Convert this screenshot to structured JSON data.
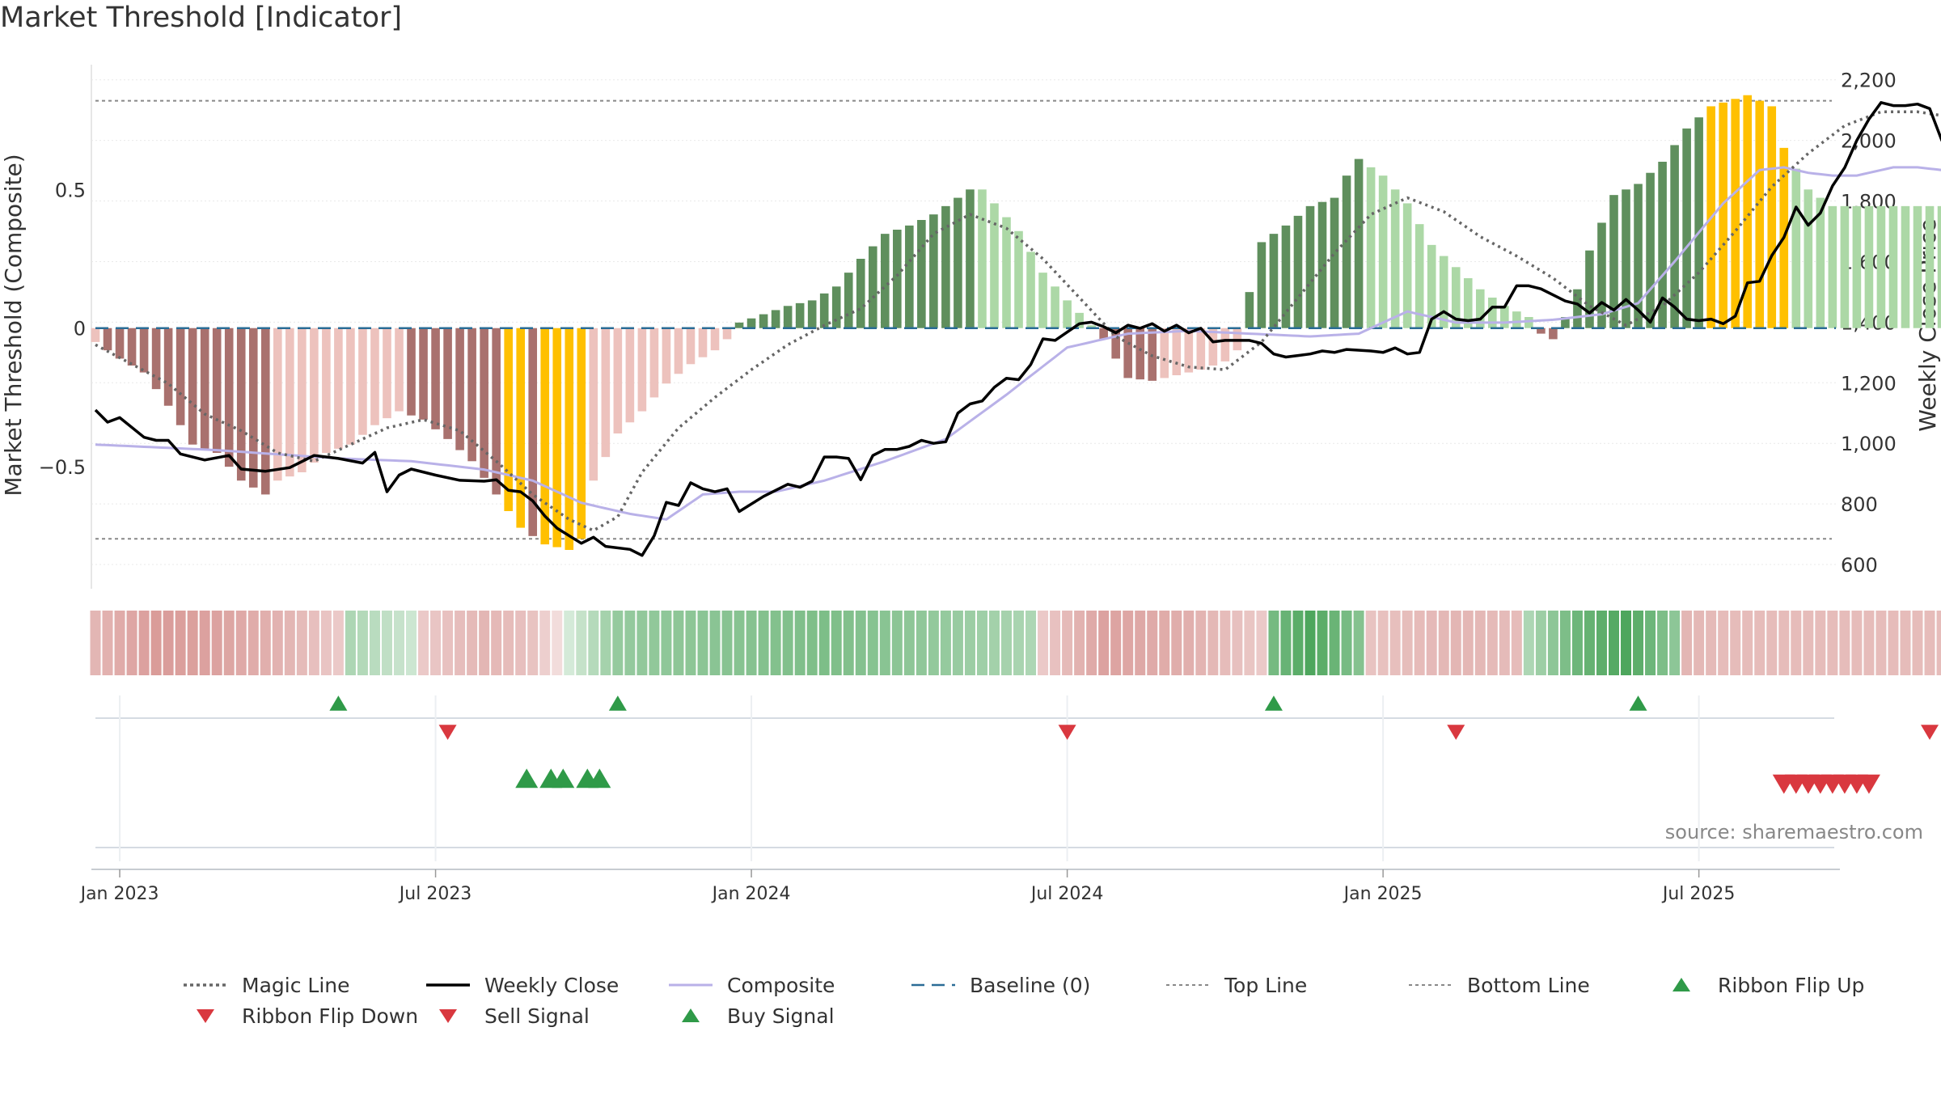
{
  "title": "Market Threshold [Indicator]",
  "source": "source: sharemaestro.com",
  "colors": {
    "bear_dark": "#a9716e",
    "bear_light": "#edc2bd",
    "bull_dark": "#5f8f5d",
    "bull_light": "#acd8a6",
    "extreme": "#ffc000",
    "close": "#000000",
    "composite": "#b9b1e8",
    "magic": "#666666",
    "baseline": "#2a6c96",
    "threshold": "#888888",
    "buy": "#2f9a48",
    "sell": "#d9383f"
  },
  "chart_data": {
    "type": "bar",
    "title": "Market Threshold [Indicator]",
    "ylabel": "Market Threshold (Composite)",
    "y2label": "Weekly Close Price",
    "ylim": [
      -0.94,
      0.95
    ],
    "y2lim": [
      520,
      2250
    ],
    "yticks": [
      {
        "v": 0.5,
        "label": "0.5"
      },
      {
        "v": 0,
        "label": "0"
      },
      {
        "v": -0.5,
        "label": "−0.5"
      }
    ],
    "y2ticks": [
      {
        "v": 2200,
        "label": "2,200"
      },
      {
        "v": 2000,
        "label": "2,000"
      },
      {
        "v": 1800,
        "label": "1,800"
      },
      {
        "v": 1600,
        "label": "1,600"
      },
      {
        "v": 1400,
        "label": "1,400"
      },
      {
        "v": 1200,
        "label": "1,200"
      },
      {
        "v": 1000,
        "label": "1,000"
      },
      {
        "v": 800,
        "label": "800"
      },
      {
        "v": 600,
        "label": "600"
      }
    ],
    "xticks": [
      {
        "w": 2,
        "label": "Jan 2023"
      },
      {
        "w": 28,
        "label": "Jul 2023"
      },
      {
        "w": 54,
        "label": "Jan 2024"
      },
      {
        "w": 80,
        "label": "Jul 2024"
      },
      {
        "w": 106,
        "label": "Jan 2025"
      },
      {
        "w": 132,
        "label": "Jul 2025"
      }
    ],
    "top_line": 0.82,
    "bottom_line": -0.76,
    "baseline": 0,
    "bar_anchors": [
      [
        0,
        -0.05
      ],
      [
        2,
        -0.11
      ],
      [
        4,
        -0.16
      ],
      [
        6,
        -0.28
      ],
      [
        8,
        -0.42
      ],
      [
        10,
        -0.45
      ],
      [
        12,
        -0.55
      ],
      [
        14,
        -0.6
      ],
      [
        15,
        -0.55
      ],
      [
        17,
        -0.52
      ],
      [
        19,
        -0.45
      ],
      [
        21,
        -0.42
      ],
      [
        23,
        -0.35
      ],
      [
        25,
        -0.3
      ],
      [
        27,
        -0.33
      ],
      [
        29,
        -0.4
      ],
      [
        31,
        -0.48
      ],
      [
        33,
        -0.6
      ],
      [
        35,
        -0.72
      ],
      [
        37,
        -0.78
      ],
      [
        39,
        -0.8
      ],
      [
        40,
        -0.76
      ],
      [
        41,
        -0.55
      ],
      [
        43,
        -0.38
      ],
      [
        45,
        -0.3
      ],
      [
        47,
        -0.2
      ],
      [
        49,
        -0.13
      ],
      [
        51,
        -0.08
      ],
      [
        52,
        -0.04
      ],
      [
        53,
        0.02
      ],
      [
        55,
        0.05
      ],
      [
        57,
        0.08
      ],
      [
        59,
        0.1
      ],
      [
        61,
        0.15
      ],
      [
        63,
        0.25
      ],
      [
        65,
        0.34
      ],
      [
        67,
        0.37
      ],
      [
        69,
        0.41
      ],
      [
        71,
        0.47
      ],
      [
        72,
        0.5
      ],
      [
        73,
        0.5
      ],
      [
        74,
        0.45
      ],
      [
        76,
        0.35
      ],
      [
        78,
        0.2
      ],
      [
        80,
        0.1
      ],
      [
        82,
        0.01
      ],
      [
        83,
        -0.04
      ],
      [
        85,
        -0.18
      ],
      [
        87,
        -0.19
      ],
      [
        89,
        -0.17
      ],
      [
        91,
        -0.15
      ],
      [
        93,
        -0.12
      ],
      [
        94,
        -0.08
      ],
      [
        95,
        0.13
      ],
      [
        96,
        0.31
      ],
      [
        98,
        0.37
      ],
      [
        100,
        0.44
      ],
      [
        102,
        0.47
      ],
      [
        103,
        0.55
      ],
      [
        104,
        0.61
      ],
      [
        105,
        0.58
      ],
      [
        106,
        0.55
      ],
      [
        108,
        0.45
      ],
      [
        110,
        0.3
      ],
      [
        112,
        0.22
      ],
      [
        114,
        0.14
      ],
      [
        116,
        0.08
      ],
      [
        118,
        0.04
      ],
      [
        119,
        -0.02
      ],
      [
        120,
        -0.04
      ],
      [
        121,
        0.04
      ],
      [
        122,
        0.14
      ],
      [
        123,
        0.28
      ],
      [
        125,
        0.48
      ],
      [
        127,
        0.52
      ],
      [
        129,
        0.6
      ],
      [
        131,
        0.72
      ],
      [
        133,
        0.8
      ],
      [
        136,
        0.84
      ],
      [
        138,
        0.8
      ],
      [
        139,
        0.65
      ],
      [
        141,
        0.5
      ],
      [
        143,
        0.44
      ],
      [
        145,
        0.44
      ]
    ],
    "extreme_weeks": [
      34,
      35,
      37,
      38,
      39,
      40,
      133,
      134,
      135,
      136,
      137,
      138,
      139
    ],
    "close_anchors": [
      [
        0,
        1110
      ],
      [
        1,
        1070
      ],
      [
        2,
        1085
      ],
      [
        4,
        1020
      ],
      [
        5,
        1010
      ],
      [
        6,
        1010
      ],
      [
        7,
        965
      ],
      [
        9,
        945
      ],
      [
        11,
        960
      ],
      [
        12,
        915
      ],
      [
        14,
        908
      ],
      [
        16,
        920
      ],
      [
        18,
        960
      ],
      [
        20,
        950
      ],
      [
        22,
        935
      ],
      [
        23,
        970
      ],
      [
        24,
        840
      ],
      [
        25,
        895
      ],
      [
        26,
        915
      ],
      [
        28,
        895
      ],
      [
        30,
        878
      ],
      [
        32,
        875
      ],
      [
        33,
        880
      ],
      [
        34,
        845
      ],
      [
        35,
        840
      ],
      [
        36,
        810
      ],
      [
        37,
        760
      ],
      [
        38,
        720
      ],
      [
        40,
        670
      ],
      [
        41,
        690
      ],
      [
        42,
        660
      ],
      [
        44,
        650
      ],
      [
        45,
        630
      ],
      [
        46,
        695
      ],
      [
        47,
        805
      ],
      [
        48,
        795
      ],
      [
        49,
        870
      ],
      [
        50,
        850
      ],
      [
        51,
        840
      ],
      [
        52,
        850
      ],
      [
        53,
        775
      ],
      [
        55,
        825
      ],
      [
        57,
        865
      ],
      [
        58,
        855
      ],
      [
        59,
        875
      ],
      [
        60,
        955
      ],
      [
        61,
        955
      ],
      [
        62,
        950
      ],
      [
        63,
        880
      ],
      [
        64,
        960
      ],
      [
        65,
        980
      ],
      [
        66,
        980
      ],
      [
        67,
        990
      ],
      [
        68,
        1010
      ],
      [
        69,
        1000
      ],
      [
        70,
        1005
      ],
      [
        71,
        1100
      ],
      [
        72,
        1130
      ],
      [
        73,
        1140
      ],
      [
        74,
        1185
      ],
      [
        75,
        1215
      ],
      [
        76,
        1210
      ],
      [
        77,
        1260
      ],
      [
        78,
        1345
      ],
      [
        79,
        1340
      ],
      [
        81,
        1395
      ],
      [
        82,
        1400
      ],
      [
        83,
        1385
      ],
      [
        84,
        1365
      ],
      [
        85,
        1390
      ],
      [
        86,
        1380
      ],
      [
        87,
        1395
      ],
      [
        88,
        1370
      ],
      [
        89,
        1390
      ],
      [
        90,
        1365
      ],
      [
        91,
        1380
      ],
      [
        92,
        1335
      ],
      [
        93,
        1340
      ],
      [
        95,
        1340
      ],
      [
        96,
        1330
      ],
      [
        97,
        1295
      ],
      [
        98,
        1285
      ],
      [
        99,
        1290
      ],
      [
        100,
        1295
      ],
      [
        101,
        1305
      ],
      [
        102,
        1300
      ],
      [
        103,
        1310
      ],
      [
        105,
        1305
      ],
      [
        106,
        1300
      ],
      [
        107,
        1315
      ],
      [
        108,
        1295
      ],
      [
        109,
        1300
      ],
      [
        110,
        1410
      ],
      [
        111,
        1435
      ],
      [
        112,
        1410
      ],
      [
        113,
        1405
      ],
      [
        114,
        1410
      ],
      [
        115,
        1450
      ],
      [
        116,
        1450
      ],
      [
        117,
        1520
      ],
      [
        118,
        1520
      ],
      [
        119,
        1510
      ],
      [
        120,
        1490
      ],
      [
        121,
        1470
      ],
      [
        122,
        1460
      ],
      [
        123,
        1430
      ],
      [
        124,
        1465
      ],
      [
        125,
        1440
      ],
      [
        126,
        1475
      ],
      [
        127,
        1440
      ],
      [
        128,
        1400
      ],
      [
        129,
        1480
      ],
      [
        130,
        1450
      ],
      [
        131,
        1410
      ],
      [
        132,
        1405
      ],
      [
        133,
        1410
      ],
      [
        134,
        1395
      ],
      [
        135,
        1420
      ],
      [
        136,
        1530
      ],
      [
        137,
        1535
      ],
      [
        138,
        1620
      ],
      [
        139,
        1680
      ],
      [
        140,
        1780
      ],
      [
        141,
        1720
      ],
      [
        142,
        1760
      ],
      [
        143,
        1850
      ],
      [
        144,
        1910
      ],
      [
        145,
        2000
      ],
      [
        146,
        2070
      ],
      [
        147,
        2125
      ],
      [
        148,
        2115
      ],
      [
        149,
        2115
      ],
      [
        150,
        2120
      ],
      [
        151,
        2105
      ],
      [
        152,
        2000
      ],
      [
        153,
        1940
      ],
      [
        154,
        1905
      ],
      [
        155,
        1915
      ],
      [
        156,
        2100
      ],
      [
        157,
        2045
      ]
    ],
    "composite_anchors": [
      [
        0,
        -0.42
      ],
      [
        10,
        -0.44
      ],
      [
        20,
        -0.47
      ],
      [
        26,
        -0.48
      ],
      [
        32,
        -0.51
      ],
      [
        36,
        -0.55
      ],
      [
        40,
        -0.63
      ],
      [
        44,
        -0.67
      ],
      [
        47,
        -0.69
      ],
      [
        50,
        -0.6
      ],
      [
        53,
        -0.59
      ],
      [
        56,
        -0.59
      ],
      [
        60,
        -0.55
      ],
      [
        65,
        -0.48
      ],
      [
        70,
        -0.4
      ],
      [
        75,
        -0.24
      ],
      [
        80,
        -0.07
      ],
      [
        85,
        -0.02
      ],
      [
        90,
        -0.01
      ],
      [
        95,
        -0.02
      ],
      [
        100,
        -0.03
      ],
      [
        104,
        -0.02
      ],
      [
        108,
        0.06
      ],
      [
        112,
        0.02
      ],
      [
        116,
        0.02
      ],
      [
        120,
        0.03
      ],
      [
        124,
        0.05
      ],
      [
        127,
        0.09
      ],
      [
        130,
        0.24
      ],
      [
        134,
        0.45
      ],
      [
        137,
        0.57
      ],
      [
        139,
        0.58
      ],
      [
        141,
        0.56
      ],
      [
        143,
        0.55
      ],
      [
        145,
        0.55
      ],
      [
        146,
        0.56
      ],
      [
        148,
        0.58
      ],
      [
        150,
        0.58
      ],
      [
        152,
        0.57
      ],
      [
        154,
        0.56
      ],
      [
        156,
        0.58
      ],
      [
        158,
        0.6
      ]
    ],
    "magic_anchors": [
      [
        0,
        -0.06
      ],
      [
        3,
        -0.13
      ],
      [
        6,
        -0.2
      ],
      [
        9,
        -0.31
      ],
      [
        12,
        -0.37
      ],
      [
        15,
        -0.45
      ],
      [
        18,
        -0.48
      ],
      [
        21,
        -0.42
      ],
      [
        24,
        -0.36
      ],
      [
        27,
        -0.33
      ],
      [
        30,
        -0.37
      ],
      [
        33,
        -0.48
      ],
      [
        36,
        -0.6
      ],
      [
        39,
        -0.69
      ],
      [
        41,
        -0.73
      ],
      [
        43,
        -0.68
      ],
      [
        45,
        -0.52
      ],
      [
        48,
        -0.36
      ],
      [
        51,
        -0.25
      ],
      [
        54,
        -0.15
      ],
      [
        57,
        -0.06
      ],
      [
        60,
        0.01
      ],
      [
        63,
        0.07
      ],
      [
        66,
        0.19
      ],
      [
        69,
        0.34
      ],
      [
        72,
        0.41
      ],
      [
        75,
        0.36
      ],
      [
        78,
        0.25
      ],
      [
        81,
        0.11
      ],
      [
        84,
        -0.03
      ],
      [
        87,
        -0.1
      ],
      [
        90,
        -0.14
      ],
      [
        93,
        -0.15
      ],
      [
        96,
        -0.05
      ],
      [
        99,
        0.11
      ],
      [
        102,
        0.27
      ],
      [
        105,
        0.41
      ],
      [
        108,
        0.47
      ],
      [
        111,
        0.42
      ],
      [
        114,
        0.33
      ],
      [
        117,
        0.26
      ],
      [
        120,
        0.18
      ],
      [
        123,
        0.08
      ],
      [
        126,
        0.01
      ],
      [
        129,
        0.08
      ],
      [
        132,
        0.2
      ],
      [
        135,
        0.35
      ],
      [
        138,
        0.51
      ],
      [
        141,
        0.63
      ],
      [
        144,
        0.73
      ],
      [
        147,
        0.78
      ],
      [
        150,
        0.78
      ],
      [
        153,
        0.76
      ],
      [
        156,
        0.72
      ],
      [
        159,
        0.66
      ],
      [
        162,
        0.59
      ]
    ],
    "ribbon_anchors": [
      [
        0,
        -0.35
      ],
      [
        5,
        -0.55
      ],
      [
        10,
        -0.5
      ],
      [
        16,
        -0.35
      ],
      [
        20,
        -0.2
      ],
      [
        21,
        0.3
      ],
      [
        26,
        0.1
      ],
      [
        27,
        -0.2
      ],
      [
        32,
        -0.35
      ],
      [
        36,
        -0.25
      ],
      [
        43,
        0.45
      ],
      [
        60,
        0.6
      ],
      [
        70,
        0.45
      ],
      [
        77,
        0.3
      ],
      [
        78,
        -0.2
      ],
      [
        83,
        -0.5
      ],
      [
        90,
        -0.4
      ],
      [
        96,
        -0.2
      ],
      [
        97,
        0.65
      ],
      [
        100,
        0.9
      ],
      [
        104,
        0.55
      ],
      [
        105,
        -0.25
      ],
      [
        112,
        -0.35
      ],
      [
        117,
        -0.3
      ],
      [
        118,
        0.3
      ],
      [
        122,
        0.7
      ],
      [
        126,
        0.9
      ],
      [
        130,
        0.5
      ],
      [
        131,
        -0.35
      ],
      [
        134,
        -0.3
      ]
    ],
    "ribbon_flip_up_weeks": [
      20,
      43,
      97,
      127
    ],
    "ribbon_flip_down_weeks": [
      29,
      80,
      112,
      151
    ],
    "buy_signal_weeks": [
      35.5,
      37.5,
      38.5,
      40.5,
      41.5
    ],
    "sell_signal_weeks": [
      139,
      140,
      141,
      142,
      143,
      144,
      145,
      146
    ],
    "week_count": 158,
    "legend_entries": [
      {
        "key": "magic",
        "label": "Magic Line",
        "style": "dotted-grey"
      },
      {
        "key": "close",
        "label": "Weekly Close",
        "style": "solid-black"
      },
      {
        "key": "composite",
        "label": "Composite",
        "style": "solid-lavender"
      },
      {
        "key": "baseline",
        "label": "Baseline (0)",
        "style": "dashed-blue"
      },
      {
        "key": "top",
        "label": "Top Line",
        "style": "dotted-grey-light"
      },
      {
        "key": "bottom",
        "label": "Bottom Line",
        "style": "dotted-grey-light"
      },
      {
        "key": "flip-up",
        "label": "Ribbon Flip Up",
        "style": "triangle-up-green"
      },
      {
        "key": "flip-down",
        "label": "Ribbon Flip Down",
        "style": "triangle-down-red"
      },
      {
        "key": "sell",
        "label": "Sell Signal",
        "style": "triangle-down-red"
      },
      {
        "key": "buy",
        "label": "Buy Signal",
        "style": "triangle-up-green"
      }
    ]
  }
}
